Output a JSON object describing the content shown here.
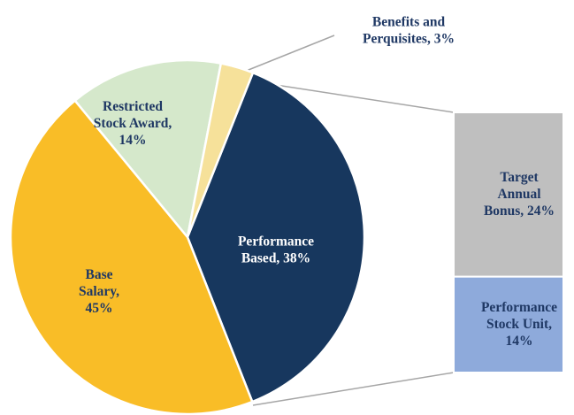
{
  "chart_data": {
    "type": "pie-of-bar",
    "values": [
      38,
      45,
      14,
      3
    ],
    "value_labels": [
      "Performance\nBased, 38%",
      "Base\nSalary,\n45%",
      "Restricted\nStock Award,\n14%",
      "Benefits and\nPerquisites, 3%"
    ],
    "colors": [
      "#17375e",
      "#f9bd27",
      "#d5e8cb",
      "#f6e19a"
    ],
    "breakdown": {
      "values": [
        24,
        14
      ],
      "value_labels": [
        "Target\nAnnual\nBonus, 24%",
        "Performance\nStock Unit,\n14%"
      ],
      "colors": [
        "#bfbfbf",
        "#8eaadb"
      ]
    }
  }
}
